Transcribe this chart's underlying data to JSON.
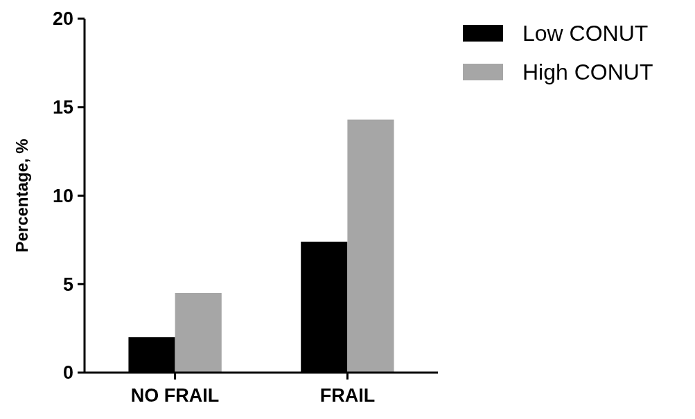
{
  "chart_data": {
    "type": "bar",
    "ylabel": "Percentage, %",
    "categories": [
      "NO FRAIL",
      "FRAIL"
    ],
    "series": [
      {
        "name": "Low CONUT",
        "color": "#000000",
        "values": [
          2.0,
          7.4
        ]
      },
      {
        "name": "High CONUT",
        "color": "#a6a6a6",
        "values": [
          4.5,
          14.3
        ]
      }
    ],
    "ylim": [
      0,
      20
    ],
    "yticks": [
      0,
      5,
      10,
      15,
      20
    ],
    "legend": "top right"
  }
}
